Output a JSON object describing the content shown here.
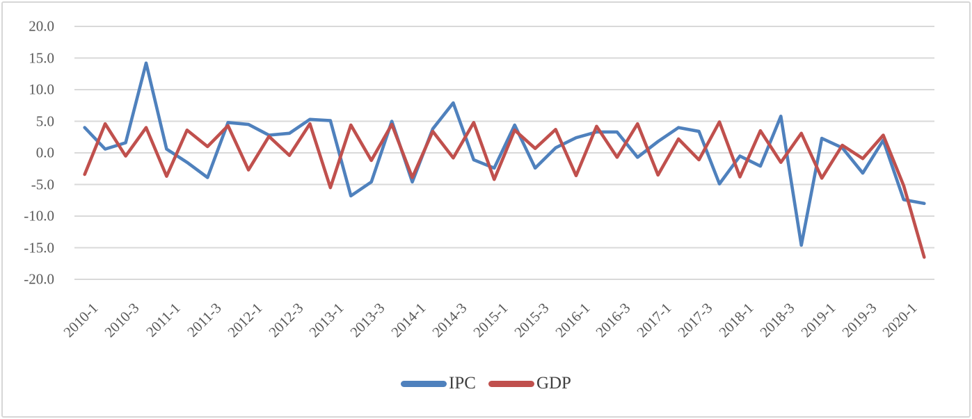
{
  "chart_data": {
    "type": "line",
    "title": "",
    "categories": [
      "2010-1",
      "2010-2",
      "2010-3",
      "2010-4",
      "2011-1",
      "2011-2",
      "2011-3",
      "2011-4",
      "2012-1",
      "2012-2",
      "2012-3",
      "2012-4",
      "2013-1",
      "2013-2",
      "2013-3",
      "2013-4",
      "2014-1",
      "2014-2",
      "2014-3",
      "2014-4",
      "2015-1",
      "2015-2",
      "2015-3",
      "2015-4",
      "2016-1",
      "2016-2",
      "2016-3",
      "2016-4",
      "2017-1",
      "2017-2",
      "2017-3",
      "2017-4",
      "2018-1",
      "2018-2",
      "2018-3",
      "2018-4",
      "2019-1",
      "2019-2",
      "2019-3",
      "2019-4",
      "2020-1",
      "2020-2"
    ],
    "x_tick_labels": [
      "2010-1",
      "2010-3",
      "2011-1",
      "2011-3",
      "2012-1",
      "2012-3",
      "2013-1",
      "2013-3",
      "2014-1",
      "2014-3",
      "2015-1",
      "2015-3",
      "2016-1",
      "2016-3",
      "2017-1",
      "2017-3",
      "2018-1",
      "2018-3",
      "2019-1",
      "2019-3",
      "2020-1"
    ],
    "x_tick_every": 2,
    "series": [
      {
        "name": "IPC",
        "color": "#4F81BD",
        "values": [
          4.0,
          0.6,
          1.6,
          14.2,
          0.6,
          -1.5,
          -3.9,
          4.8,
          4.5,
          2.8,
          3.1,
          5.3,
          5.1,
          -6.8,
          -4.6,
          5.0,
          -4.6,
          3.8,
          7.9,
          -1.1,
          -2.4,
          4.4,
          -2.4,
          0.8,
          2.4,
          3.3,
          3.3,
          -0.7,
          1.8,
          4.0,
          3.4,
          -4.9,
          -0.5,
          -2.1,
          5.8,
          -14.6,
          2.3,
          0.8,
          -3.2,
          2.0,
          -7.4,
          -8.0
        ]
      },
      {
        "name": "GDP",
        "color": "#C0504D",
        "values": [
          -3.4,
          4.6,
          -0.5,
          4.0,
          -3.7,
          3.6,
          1.0,
          4.3,
          -2.7,
          2.6,
          -0.4,
          4.6,
          -5.5,
          4.4,
          -1.2,
          4.5,
          -3.9,
          3.4,
          -0.8,
          4.8,
          -4.2,
          3.6,
          0.7,
          3.7,
          -3.6,
          4.2,
          -0.7,
          4.6,
          -3.5,
          2.2,
          -1.1,
          4.9,
          -3.8,
          3.5,
          -1.5,
          3.1,
          -4.0,
          1.2,
          -0.9,
          2.8,
          -5.2,
          -16.5
        ]
      }
    ],
    "ylim": [
      -20,
      20
    ],
    "ytick_step": 5,
    "ytick_labels": [
      "20.0",
      "15.0",
      "10.0",
      "5.0",
      "0.0",
      "-5.0",
      "-10.0",
      "-15.0",
      "-20.0"
    ],
    "xlabel": "",
    "ylabel": "",
    "grid": true,
    "legend_position": "bottom",
    "colors": {
      "grid_line": "#d9d9d9",
      "axis_text": "#595959",
      "legend_text": "#404040",
      "border": "#d6d6d6",
      "background": "#ffffff"
    }
  }
}
